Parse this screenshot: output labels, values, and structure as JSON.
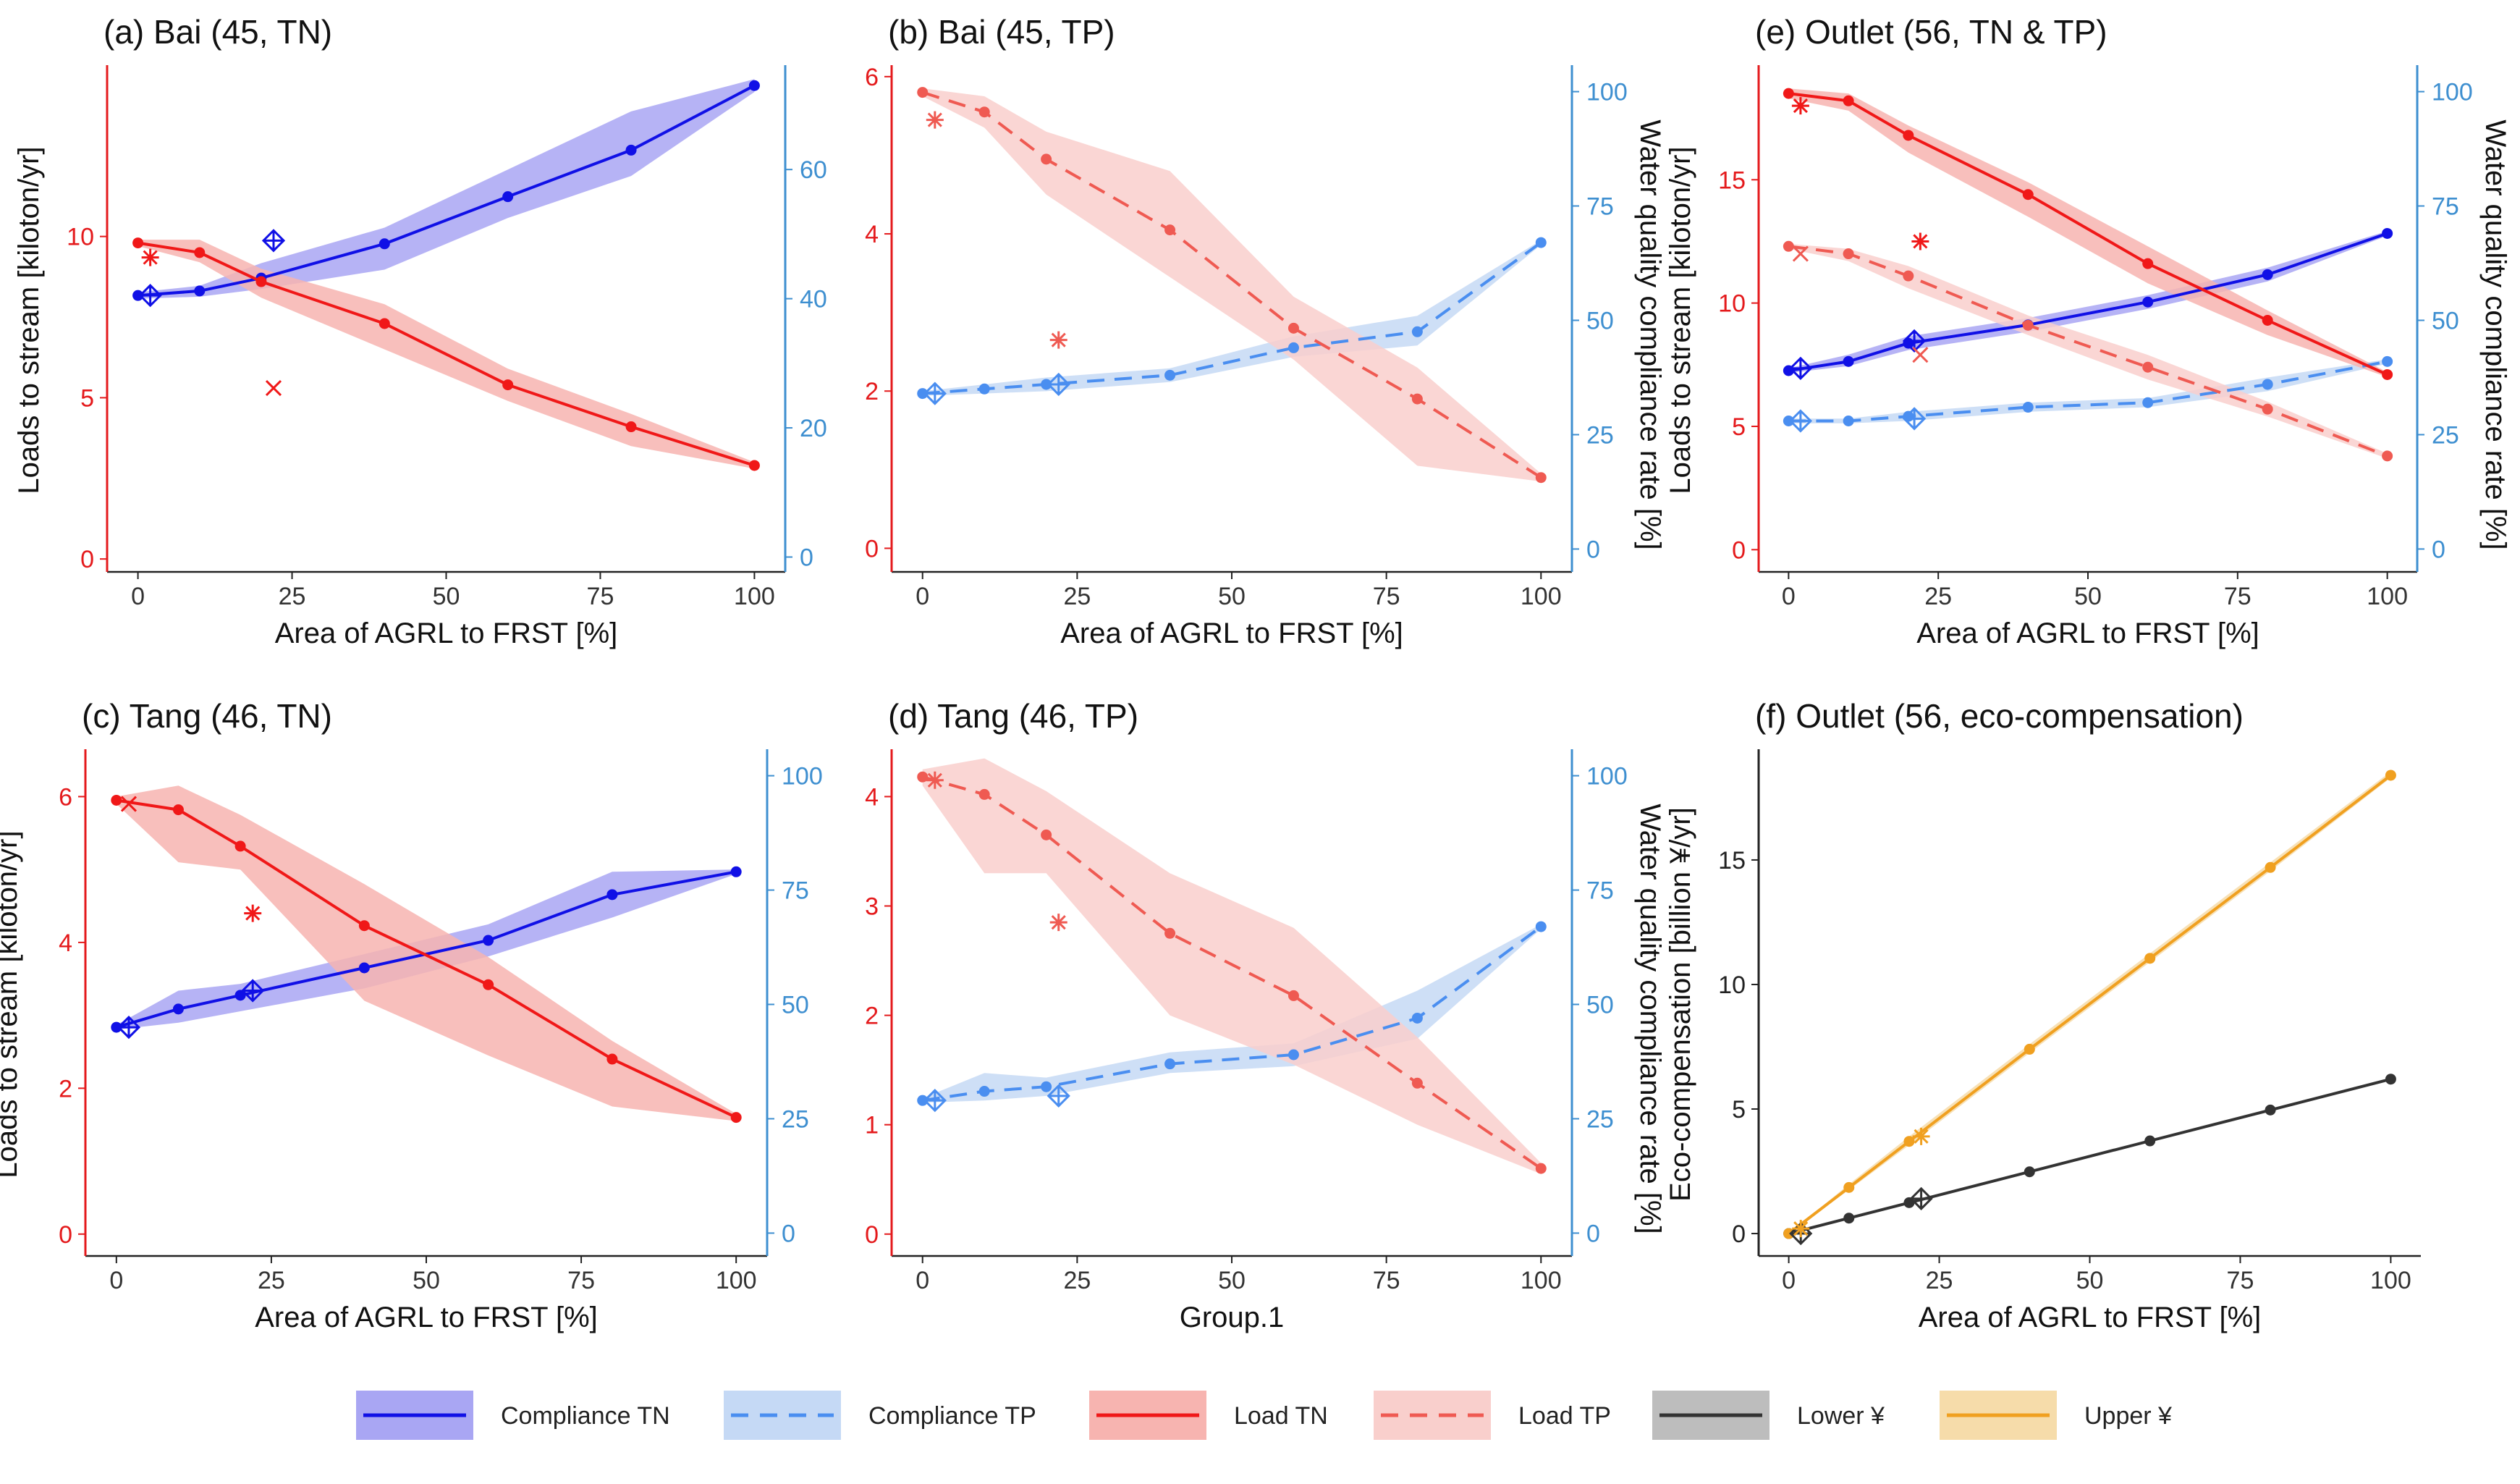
{
  "colors": {
    "compliance_tn": "#1010e6",
    "compliance_tn_band": "#a9a6f3",
    "compliance_tp": "#4a8ef0",
    "compliance_tp_band": "#c5d9f5",
    "load_tn": "#f01818",
    "load_tn_band": "#f7b4b0",
    "load_tp": "#ef5a52",
    "load_tp_band": "#f9cfcc",
    "lower": "#333333",
    "lower_band": "#bdbdbd",
    "upper": "#f0a020",
    "upper_band": "#f6dcaa",
    "left_axis": "#e41a1c",
    "right_axis": "#3e8fd0"
  },
  "chart_data": [
    {
      "id": "a",
      "type": "line",
      "title": "(a) Bai (45, TN)",
      "xlabel": "Area of AGRL to FRST [%]",
      "ylabel": "Loads to stream [kiloton/yr]",
      "y2label": "",
      "xlim": [
        -5,
        105
      ],
      "ylim": [
        -0.4,
        15.2
      ],
      "y2lim": [
        -2.3,
        75.6
      ],
      "xticks": [
        0,
        25,
        50,
        75,
        100
      ],
      "yticks": [
        0,
        5,
        10
      ],
      "y2ticks": [
        0,
        20,
        40,
        60
      ],
      "series": [
        {
          "name": "Compliance TN",
          "axis": "right",
          "style": "solid",
          "color": "compliance_tn",
          "x": [
            0,
            10,
            20,
            40,
            60,
            80,
            100
          ],
          "y": [
            40.5,
            41.2,
            43.2,
            48.5,
            55.8,
            63,
            73
          ],
          "lower": [
            40,
            40.3,
            41.5,
            44.5,
            52.5,
            59,
            72
          ],
          "upper": [
            41,
            42,
            45.5,
            51,
            60,
            69,
            74
          ]
        },
        {
          "name": "Load TN",
          "axis": "left",
          "style": "solid",
          "color": "load_tn",
          "x": [
            0,
            10,
            20,
            40,
            60,
            80,
            100
          ],
          "y": [
            9.8,
            9.5,
            8.6,
            7.3,
            5.4,
            4.1,
            2.9
          ],
          "lower": [
            9.7,
            9.2,
            8.1,
            6.5,
            4.9,
            3.5,
            2.8
          ],
          "upper": [
            9.9,
            9.9,
            9.0,
            7.9,
            5.9,
            4.5,
            3.0
          ]
        }
      ],
      "markers": [
        {
          "kind": "diamond",
          "axis": "right",
          "color": "compliance_tn",
          "x": 2,
          "y": 40.5
        },
        {
          "kind": "diamond",
          "axis": "right",
          "color": "compliance_tn",
          "x": 22,
          "y": 49
        },
        {
          "kind": "asterisk",
          "axis": "left",
          "color": "load_tn",
          "x": 2,
          "y": 9.35
        },
        {
          "kind": "cross",
          "axis": "left",
          "color": "load_tn",
          "x": 22,
          "y": 5.3
        }
      ]
    },
    {
      "id": "b",
      "type": "line",
      "title": "(b) Bai (45, TP)",
      "xlabel": "Area of AGRL to FRST [%]",
      "ylabel": "",
      "y2label": "Water quality compliance rate [%]",
      "xlim": [
        -5,
        105
      ],
      "ylim": [
        -0.3,
        6.1
      ],
      "y2lim": [
        -5,
        105
      ],
      "xticks": [
        0,
        25,
        50,
        75,
        100
      ],
      "yticks": [
        0,
        2,
        4,
        6
      ],
      "y2ticks": [
        0,
        25,
        50,
        75,
        100
      ],
      "series": [
        {
          "name": "Compliance TP",
          "axis": "right",
          "style": "dashed",
          "color": "compliance_tp",
          "x": [
            0,
            10,
            20,
            40,
            60,
            80,
            100
          ],
          "y": [
            34,
            35,
            36,
            38,
            44,
            47.5,
            67
          ],
          "lower": [
            33.5,
            34,
            34.5,
            36.5,
            42,
            44.5,
            66.5
          ],
          "upper": [
            34.5,
            36,
            37.5,
            39.5,
            46.5,
            51,
            67.5
          ]
        },
        {
          "name": "Load TP",
          "axis": "left",
          "style": "dashed",
          "color": "load_tp",
          "x": [
            0,
            10,
            20,
            40,
            60,
            80,
            100
          ],
          "y": [
            5.8,
            5.55,
            4.95,
            4.05,
            2.8,
            1.9,
            0.9
          ],
          "lower": [
            5.75,
            5.35,
            4.5,
            3.45,
            2.4,
            1.05,
            0.85
          ],
          "upper": [
            5.85,
            5.75,
            5.3,
            4.8,
            3.2,
            2.3,
            0.95
          ]
        }
      ],
      "markers": [
        {
          "kind": "diamond",
          "axis": "right",
          "color": "compliance_tp",
          "x": 2,
          "y": 34
        },
        {
          "kind": "diamond",
          "axis": "right",
          "color": "compliance_tp",
          "x": 22,
          "y": 36
        },
        {
          "kind": "asterisk",
          "axis": "left",
          "color": "load_tp",
          "x": 2,
          "y": 5.45
        },
        {
          "kind": "asterisk",
          "axis": "left",
          "color": "load_tp",
          "x": 22,
          "y": 2.65
        }
      ]
    },
    {
      "id": "e",
      "type": "line",
      "title": "(e) Outlet (56, TN & TP)",
      "xlabel": "Area of AGRL to FRST [%]",
      "ylabel": "Loads to stream [kiloton/yr]",
      "y2label": "Water quality compliance rate [%]",
      "xlim": [
        -5,
        105
      ],
      "ylim": [
        -0.9,
        19.5
      ],
      "y2lim": [
        -5,
        105
      ],
      "xticks": [
        0,
        25,
        50,
        75,
        100
      ],
      "yticks": [
        0,
        5,
        10,
        15
      ],
      "y2ticks": [
        0,
        25,
        50,
        75,
        100
      ],
      "series": [
        {
          "name": "Compliance TN",
          "axis": "right",
          "style": "solid",
          "color": "compliance_tn",
          "x": [
            0,
            10,
            20,
            40,
            60,
            80,
            100
          ],
          "y": [
            39,
            41,
            45,
            49,
            54,
            60,
            69
          ],
          "lower": [
            38.5,
            40,
            43.5,
            47.5,
            52.5,
            58.5,
            68.5
          ],
          "upper": [
            39.5,
            42.5,
            46.5,
            50.5,
            55.5,
            61.5,
            69.5
          ]
        },
        {
          "name": "Compliance TP",
          "axis": "right",
          "style": "dashed",
          "color": "compliance_tp",
          "x": [
            0,
            10,
            20,
            40,
            60,
            80,
            100
          ],
          "y": [
            28,
            28,
            29,
            31,
            32,
            36,
            41
          ],
          "lower": [
            27.5,
            27.5,
            28,
            30,
            31,
            34.5,
            40.5
          ],
          "upper": [
            28.5,
            28.5,
            30,
            32,
            33,
            37.5,
            41.5
          ]
        },
        {
          "name": "Load TN",
          "axis": "left",
          "style": "solid",
          "color": "load_tn",
          "x": [
            0,
            10,
            20,
            40,
            60,
            80,
            100
          ],
          "y": [
            18.5,
            18.2,
            16.8,
            14.4,
            11.6,
            9.3,
            7.1
          ],
          "lower": [
            18.3,
            17.8,
            16.1,
            13.5,
            10.8,
            8.7,
            7.0
          ],
          "upper": [
            18.7,
            18.5,
            17.2,
            14.9,
            12.3,
            9.7,
            7.2
          ]
        },
        {
          "name": "Load TP",
          "axis": "left",
          "style": "dashed",
          "color": "load_tp",
          "x": [
            0,
            10,
            20,
            40,
            60,
            80,
            100
          ],
          "y": [
            12.3,
            12.0,
            11.1,
            9.1,
            7.4,
            5.7,
            3.8
          ],
          "lower": [
            12.2,
            11.7,
            10.6,
            8.7,
            6.9,
            5.4,
            3.7
          ],
          "upper": [
            12.4,
            12.2,
            11.5,
            9.5,
            7.9,
            6.0,
            3.9
          ]
        }
      ],
      "markers": [
        {
          "kind": "diamond",
          "axis": "right",
          "color": "compliance_tn",
          "x": 2,
          "y": 39.5
        },
        {
          "kind": "diamond",
          "axis": "right",
          "color": "compliance_tn",
          "x": 21,
          "y": 45.5
        },
        {
          "kind": "diamond",
          "axis": "right",
          "color": "compliance_tp",
          "x": 2,
          "y": 28
        },
        {
          "kind": "diamond",
          "axis": "right",
          "color": "compliance_tp",
          "x": 21,
          "y": 28.5
        },
        {
          "kind": "asterisk",
          "axis": "left",
          "color": "load_tn",
          "x": 2,
          "y": 18
        },
        {
          "kind": "cross",
          "axis": "left",
          "color": "load_tp",
          "x": 2,
          "y": 12
        },
        {
          "kind": "asterisk",
          "axis": "left",
          "color": "load_tn",
          "x": 22,
          "y": 12.5
        },
        {
          "kind": "cross",
          "axis": "left",
          "color": "load_tp",
          "x": 22,
          "y": 7.9
        }
      ]
    },
    {
      "id": "c",
      "type": "line",
      "title": "(c) Tang (46, TN)",
      "xlabel": "Area of AGRL to FRST [%]",
      "ylabel": "Loads to stream [kiloton/yr]",
      "y2label": "",
      "xlim": [
        -5,
        105
      ],
      "ylim": [
        -0.3,
        6.6
      ],
      "y2lim": [
        -5,
        105
      ],
      "xticks": [
        0,
        25,
        50,
        75,
        100
      ],
      "yticks": [
        0,
        2,
        4,
        6
      ],
      "y2ticks": [
        0,
        25,
        50,
        75,
        100
      ],
      "series": [
        {
          "name": "Compliance TN",
          "axis": "right",
          "style": "solid",
          "color": "compliance_tn",
          "x": [
            0,
            10,
            20,
            40,
            60,
            80,
            100
          ],
          "y": [
            45,
            49,
            52,
            58,
            64,
            74,
            79
          ],
          "lower": [
            44.5,
            46,
            48.5,
            53.5,
            60.5,
            69,
            78.5
          ],
          "upper": [
            45.5,
            53,
            54.5,
            61,
            67.5,
            79,
            79.5
          ]
        },
        {
          "name": "Load TN",
          "axis": "left",
          "style": "solid",
          "color": "load_tn",
          "x": [
            0,
            10,
            20,
            40,
            60,
            80,
            100
          ],
          "y": [
            5.95,
            5.82,
            5.32,
            4.23,
            3.42,
            2.4,
            1.6
          ],
          "lower": [
            5.9,
            5.1,
            5.0,
            3.2,
            2.45,
            1.75,
            1.55
          ],
          "upper": [
            6.0,
            6.15,
            5.75,
            4.8,
            3.8,
            2.65,
            1.65
          ]
        }
      ],
      "markers": [
        {
          "kind": "diamond",
          "axis": "right",
          "color": "compliance_tn",
          "x": 2,
          "y": 45
        },
        {
          "kind": "diamond",
          "axis": "right",
          "color": "compliance_tn",
          "x": 22,
          "y": 53
        },
        {
          "kind": "cross",
          "axis": "left",
          "color": "load_tn",
          "x": 2,
          "y": 5.9
        },
        {
          "kind": "asterisk",
          "axis": "left",
          "color": "load_tn",
          "x": 22,
          "y": 4.4
        }
      ]
    },
    {
      "id": "d",
      "type": "line",
      "title": "(d) Tang (46, TP)",
      "xlabel": "Group.1",
      "ylabel": "",
      "y2label": "Water quality compliance rate [%]",
      "xlim": [
        -5,
        105
      ],
      "ylim": [
        -0.2,
        4.4
      ],
      "y2lim": [
        -5,
        105
      ],
      "xticks": [
        0,
        25,
        50,
        75,
        100
      ],
      "yticks": [
        0,
        1,
        2,
        3,
        4
      ],
      "y2ticks": [
        0,
        25,
        50,
        75,
        100
      ],
      "series": [
        {
          "name": "Compliance TP",
          "axis": "right",
          "style": "dashed",
          "color": "compliance_tp",
          "x": [
            0,
            10,
            20,
            40,
            60,
            80,
            100
          ],
          "y": [
            29,
            31,
            32,
            37,
            39,
            47,
            67
          ],
          "lower": [
            28.5,
            29,
            30,
            35,
            36.5,
            42.5,
            66.5
          ],
          "upper": [
            29.5,
            35,
            34,
            39.5,
            41.5,
            53,
            67.5
          ]
        },
        {
          "name": "Load TP",
          "axis": "left",
          "style": "dashed",
          "color": "load_tp",
          "x": [
            0,
            10,
            20,
            40,
            60,
            80,
            100
          ],
          "y": [
            4.18,
            4.02,
            3.65,
            2.75,
            2.18,
            1.38,
            0.6
          ],
          "lower": [
            4.1,
            3.3,
            3.3,
            2.0,
            1.55,
            1.0,
            0.55
          ],
          "upper": [
            4.25,
            4.35,
            4.05,
            3.3,
            2.8,
            1.8,
            0.65
          ]
        }
      ],
      "markers": [
        {
          "kind": "diamond",
          "axis": "right",
          "color": "compliance_tp",
          "x": 2,
          "y": 29
        },
        {
          "kind": "diamond",
          "axis": "right",
          "color": "compliance_tp",
          "x": 22,
          "y": 30
        },
        {
          "kind": "asterisk",
          "axis": "left",
          "color": "load_tp",
          "x": 2,
          "y": 4.15
        },
        {
          "kind": "asterisk",
          "axis": "left",
          "color": "load_tp",
          "x": 22,
          "y": 2.85
        }
      ]
    },
    {
      "id": "f",
      "type": "line",
      "title": "(f) Outlet (56, eco-compensation)",
      "xlabel": "Area of AGRL to FRST [%]",
      "ylabel": "Eco-compensation [billion ¥/yr]",
      "y2label": "",
      "xlim": [
        -5,
        105
      ],
      "ylim": [
        -0.9,
        19.3
      ],
      "y2lim": null,
      "xticks": [
        0,
        25,
        50,
        75,
        100
      ],
      "yticks": [
        0,
        5,
        10,
        15
      ],
      "y2ticks": [],
      "series": [
        {
          "name": "Lower ¥",
          "axis": "left",
          "style": "solid",
          "color": "lower",
          "x": [
            0,
            10,
            20,
            40,
            60,
            80,
            100
          ],
          "y": [
            0,
            0.62,
            1.24,
            2.48,
            3.72,
            4.96,
            6.2
          ],
          "lower": [
            0,
            0.6,
            1.2,
            2.44,
            3.68,
            4.92,
            6.16
          ],
          "upper": [
            0,
            0.64,
            1.28,
            2.52,
            3.76,
            5.0,
            6.24
          ]
        },
        {
          "name": "Upper ¥",
          "axis": "left",
          "style": "solid",
          "color": "upper",
          "x": [
            0,
            10,
            20,
            40,
            60,
            80,
            100
          ],
          "y": [
            0,
            1.85,
            3.7,
            7.4,
            11.05,
            14.7,
            18.4
          ],
          "lower": [
            0,
            1.75,
            3.55,
            7.25,
            10.9,
            14.55,
            18.3
          ],
          "upper": [
            0,
            1.98,
            3.9,
            7.6,
            11.25,
            14.9,
            18.55
          ]
        }
      ],
      "markers": [
        {
          "kind": "diamond",
          "axis": "left",
          "color": "lower",
          "x": 2,
          "y": 0
        },
        {
          "kind": "diamond",
          "axis": "left",
          "color": "lower",
          "x": 22,
          "y": 1.4
        },
        {
          "kind": "asterisk",
          "axis": "left",
          "color": "upper",
          "x": 2,
          "y": 0.2
        },
        {
          "kind": "asterisk",
          "axis": "left",
          "color": "upper",
          "x": 22,
          "y": 3.9
        }
      ]
    }
  ],
  "legend": [
    {
      "label": "Compliance TN",
      "color": "compliance_tn",
      "band": "compliance_tn_band",
      "style": "solid"
    },
    {
      "label": "Compliance TP",
      "color": "compliance_tp",
      "band": "compliance_tp_band",
      "style": "dashed"
    },
    {
      "label": "Load TN",
      "color": "load_tn",
      "band": "load_tn_band",
      "style": "solid"
    },
    {
      "label": "Load TP",
      "color": "load_tp",
      "band": "load_tp_band",
      "style": "dashed"
    },
    {
      "label": "Lower ¥",
      "color": "lower",
      "band": "lower_band",
      "style": "solid"
    },
    {
      "label": "Upper ¥",
      "color": "upper",
      "band": "upper_band",
      "style": "solid"
    }
  ]
}
